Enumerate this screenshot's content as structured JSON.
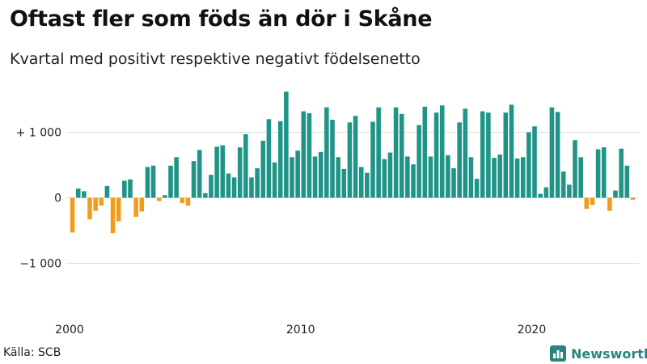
{
  "title": "Oftast fler som föds än dör i Skåne",
  "subtitle": "Kvartal med positivt respektive negativt födelsenetto",
  "source": "Källa: SCB",
  "brand": "Newsworthy",
  "colors": {
    "positive": "#1f9487",
    "negative": "#f39c1c",
    "grid": "#dddddd",
    "brand": "#2a8580"
  },
  "chart_data": {
    "type": "bar",
    "x_start": "2000 Q1",
    "period": "quarter",
    "yticks": [
      {
        "value": 1000,
        "label": "+ 1 000"
      },
      {
        "value": 0,
        "label": "0"
      },
      {
        "value": -1000,
        "label": "−1 000"
      }
    ],
    "xticks": [
      "2000",
      "2010",
      "2020"
    ],
    "ylim": [
      -1700,
      1700
    ],
    "grid": true,
    "values": [
      -530,
      140,
      100,
      -330,
      -200,
      -120,
      180,
      -540,
      -360,
      260,
      280,
      -290,
      -210,
      470,
      490,
      -50,
      40,
      490,
      620,
      -80,
      -120,
      560,
      730,
      70,
      350,
      780,
      800,
      370,
      310,
      770,
      970,
      310,
      450,
      870,
      1200,
      540,
      1170,
      1620,
      620,
      720,
      1320,
      1290,
      630,
      700,
      1380,
      1190,
      620,
      440,
      1150,
      1250,
      470,
      380,
      1160,
      1380,
      590,
      690,
      1380,
      1280,
      630,
      510,
      1110,
      1390,
      630,
      1300,
      1410,
      650,
      450,
      1150,
      1360,
      620,
      290,
      1320,
      1300,
      610,
      660,
      1300,
      1420,
      600,
      620,
      1000,
      1090,
      60,
      160,
      1380,
      1310,
      400,
      200,
      880,
      620,
      -170,
      -110,
      740,
      770,
      -200,
      110,
      750,
      490,
      -30
    ]
  }
}
